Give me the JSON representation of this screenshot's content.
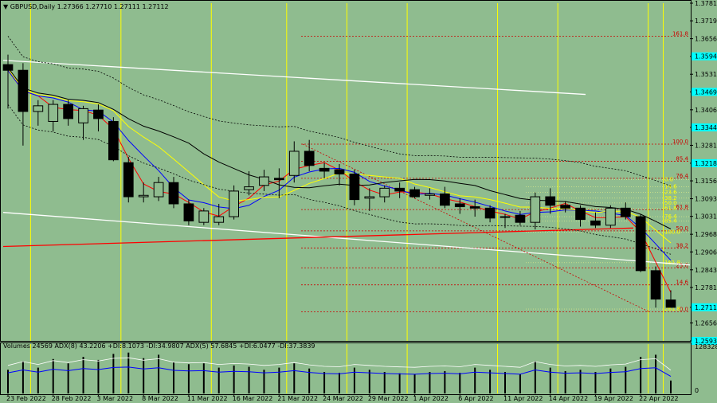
{
  "header": {
    "symbol": "GBPUSD,Daily",
    "ohlc": "1.27366 1.27710 1.27111 1.27112",
    "indicator": "Volumes 24569   ADX(8) 43.2206 +DI:8.1073 -DI:34.9807  ADX(5) 57.6845 +DI:6.0477 -DI:37.3839"
  },
  "colors": {
    "background": "#8fbc8f",
    "bull_body": "#8fbc8f",
    "bear_body": "#000000",
    "vertical_marker": "#ffff00",
    "fib_line": "#cc0000",
    "channel_line": "#ffffff",
    "trend_line": "#ff0000",
    "price_highlight": "#00ffff",
    "ma_red": "#ff0000",
    "ma_blue": "#0000ff",
    "ma_yellow": "#ffff00",
    "ma_black": "#000000",
    "adx_line": "#0000ff",
    "adx_light": "#ffffff"
  },
  "chart_data": {
    "type": "candlestick",
    "price_axis": {
      "min": 1.2593,
      "max": 1.3781,
      "labels": [
        "1.37810",
        "1.37190",
        "1.36560",
        "1.35940",
        "1.35310",
        "1.34690",
        "1.34060",
        "1.33440",
        "1.32810",
        "1.32180",
        "1.31560",
        "1.30930",
        "1.30310",
        "1.29680",
        "1.29060",
        "1.28430",
        "1.27810",
        "1.27112",
        "1.26560",
        "1.25930"
      ],
      "highlighted": [
        "1.35940",
        "1.34690",
        "1.33440",
        "1.32180",
        "1.27112",
        "1.25930"
      ]
    },
    "date_labels": [
      "23 Feb 2022",
      "28 Feb 2022",
      "3 Mar 2022",
      "8 Mar 2022",
      "11 Mar 2022",
      "16 Mar 2022",
      "21 Mar 2022",
      "24 Mar 2022",
      "29 Mar 2022",
      "1 Apr 2022",
      "6 Apr 2022",
      "11 Apr 2022",
      "14 Apr 2022",
      "19 Apr 2022",
      "22 Apr 2022"
    ],
    "date_label_bars": [
      0,
      3,
      6,
      9,
      12,
      15,
      18,
      21,
      24,
      27,
      30,
      33,
      36,
      39,
      42
    ],
    "bars": [
      {
        "o": 1.3565,
        "h": 1.36,
        "l": 1.341,
        "c": 1.3545
      },
      {
        "o": 1.3545,
        "h": 1.357,
        "l": 1.328,
        "c": 1.34
      },
      {
        "o": 1.34,
        "h": 1.344,
        "l": 1.335,
        "c": 1.342
      },
      {
        "o": 1.3365,
        "h": 1.344,
        "l": 1.333,
        "c": 1.3425
      },
      {
        "o": 1.3425,
        "h": 1.344,
        "l": 1.335,
        "c": 1.3375
      },
      {
        "o": 1.336,
        "h": 1.342,
        "l": 1.33,
        "c": 1.341
      },
      {
        "o": 1.3405,
        "h": 1.3425,
        "l": 1.333,
        "c": 1.3375
      },
      {
        "o": 1.3365,
        "h": 1.338,
        "l": 1.3225,
        "c": 1.323
      },
      {
        "o": 1.322,
        "h": 1.324,
        "l": 1.308,
        "c": 1.31
      },
      {
        "o": 1.31,
        "h": 1.315,
        "l": 1.308,
        "c": 1.3105
      },
      {
        "o": 1.31,
        "h": 1.317,
        "l": 1.3085,
        "c": 1.315
      },
      {
        "o": 1.315,
        "h": 1.317,
        "l": 1.306,
        "c": 1.3075
      },
      {
        "o": 1.3075,
        "h": 1.309,
        "l": 1.3,
        "c": 1.3015
      },
      {
        "o": 1.301,
        "h": 1.306,
        "l": 1.3,
        "c": 1.305
      },
      {
        "o": 1.301,
        "h": 1.3075,
        "l": 1.3,
        "c": 1.303
      },
      {
        "o": 1.303,
        "h": 1.314,
        "l": 1.302,
        "c": 1.312
      },
      {
        "o": 1.3125,
        "h": 1.319,
        "l": 1.3105,
        "c": 1.3135
      },
      {
        "o": 1.314,
        "h": 1.3195,
        "l": 1.312,
        "c": 1.317
      },
      {
        "o": 1.3165,
        "h": 1.32,
        "l": 1.3095,
        "c": 1.316
      },
      {
        "o": 1.3175,
        "h": 1.3295,
        "l": 1.315,
        "c": 1.326
      },
      {
        "o": 1.326,
        "h": 1.33,
        "l": 1.319,
        "c": 1.321
      },
      {
        "o": 1.32,
        "h": 1.322,
        "l": 1.3165,
        "c": 1.319
      },
      {
        "o": 1.3195,
        "h": 1.3215,
        "l": 1.314,
        "c": 1.318
      },
      {
        "o": 1.318,
        "h": 1.3195,
        "l": 1.307,
        "c": 1.309
      },
      {
        "o": 1.3095,
        "h": 1.313,
        "l": 1.305,
        "c": 1.31
      },
      {
        "o": 1.31,
        "h": 1.314,
        "l": 1.308,
        "c": 1.313
      },
      {
        "o": 1.313,
        "h": 1.315,
        "l": 1.3095,
        "c": 1.312
      },
      {
        "o": 1.3125,
        "h": 1.3135,
        "l": 1.3095,
        "c": 1.31
      },
      {
        "o": 1.3105,
        "h": 1.313,
        "l": 1.309,
        "c": 1.311
      },
      {
        "o": 1.311,
        "h": 1.3135,
        "l": 1.306,
        "c": 1.307
      },
      {
        "o": 1.3075,
        "h": 1.3095,
        "l": 1.304,
        "c": 1.3065
      },
      {
        "o": 1.3065,
        "h": 1.309,
        "l": 1.303,
        "c": 1.306
      },
      {
        "o": 1.306,
        "h": 1.307,
        "l": 1.301,
        "c": 1.3025
      },
      {
        "o": 1.303,
        "h": 1.304,
        "l": 1.299,
        "c": 1.303
      },
      {
        "o": 1.3035,
        "h": 1.305,
        "l": 1.3,
        "c": 1.301
      },
      {
        "o": 1.301,
        "h": 1.3115,
        "l": 1.2985,
        "c": 1.31
      },
      {
        "o": 1.31,
        "h": 1.313,
        "l": 1.304,
        "c": 1.307
      },
      {
        "o": 1.307,
        "h": 1.3085,
        "l": 1.3045,
        "c": 1.306
      },
      {
        "o": 1.306,
        "h": 1.307,
        "l": 1.2995,
        "c": 1.302
      },
      {
        "o": 1.3015,
        "h": 1.3045,
        "l": 1.299,
        "c": 1.3
      },
      {
        "o": 1.3,
        "h": 1.307,
        "l": 1.299,
        "c": 1.306
      },
      {
        "o": 1.306,
        "h": 1.308,
        "l": 1.302,
        "c": 1.303
      },
      {
        "o": 1.303,
        "h": 1.304,
        "l": 1.2835,
        "c": 1.284
      },
      {
        "o": 1.284,
        "h": 1.2855,
        "l": 1.271,
        "c": 1.274
      },
      {
        "o": 1.2737,
        "h": 1.2771,
        "l": 1.2711,
        "c": 1.2711
      }
    ],
    "fib_levels": [
      {
        "label": "161.8",
        "price": 1.3665,
        "color": "#cc0000"
      },
      {
        "label": "100.0",
        "price": 1.3285,
        "color": "#cc0000"
      },
      {
        "label": "85.4",
        "price": 1.3225,
        "color": "#cc0000"
      },
      {
        "label": "76.4",
        "price": 1.3165,
        "color": "#cc0000"
      },
      {
        "label": "61.8",
        "price": 1.3055,
        "color": "#cc0000"
      },
      {
        "label": "50.0",
        "price": 1.298,
        "color": "#cc0000"
      },
      {
        "label": "38.2",
        "price": 1.292,
        "color": "#cc0000"
      },
      {
        "label": "23.6",
        "price": 1.285,
        "color": "#cc0000"
      },
      {
        "label": "14.6",
        "price": 1.279,
        "color": "#cc0000"
      },
      {
        "label": "0.0",
        "price": 1.2695,
        "color": "#cc0000"
      }
    ],
    "fib_small_labels": [
      {
        "label": "0.0",
        "price": 1.316
      },
      {
        "label": "14.6",
        "price": 1.3135
      },
      {
        "label": "23.6",
        "price": 1.3115
      },
      {
        "label": "38.2",
        "price": 1.3095
      },
      {
        "label": "50.0",
        "price": 1.3078
      },
      {
        "label": "61.8",
        "price": 1.306
      },
      {
        "label": "76.4",
        "price": 1.303
      },
      {
        "label": "85.4",
        "price": 1.3015
      },
      {
        "label": "100.0",
        "price": 1.2975
      },
      {
        "label": "161.8",
        "price": 1.2868
      },
      {
        "label": "261.8",
        "price": 1.2705
      }
    ],
    "vertical_markers": [
      1,
      7,
      13,
      18,
      22,
      26,
      32,
      36,
      42,
      43
    ],
    "volume_axis": {
      "max": 128328,
      "labels": [
        "128328",
        "0"
      ]
    }
  }
}
